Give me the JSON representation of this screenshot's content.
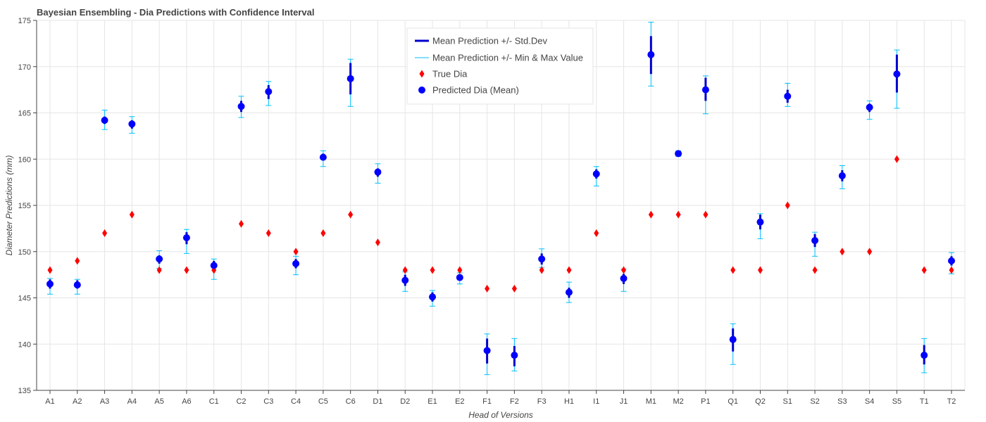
{
  "chart_data": {
    "type": "scatter",
    "title": "Bayesian Ensembling - Dia Predictions with Confidence Interval",
    "xlabel": "Head of Versions",
    "ylabel": "Diameter Predictions (mm)",
    "ylim": [
      135,
      175
    ],
    "yticks": [
      135,
      140,
      145,
      150,
      155,
      160,
      165,
      170,
      175
    ],
    "grid": true,
    "legend_position": "top-center",
    "categories": [
      "A1",
      "A2",
      "A3",
      "A4",
      "A5",
      "A6",
      "C1",
      "C2",
      "C3",
      "C4",
      "C5",
      "C6",
      "D1",
      "D2",
      "E1",
      "E2",
      "F1",
      "F2",
      "F3",
      "H1",
      "I1",
      "J1",
      "M1",
      "M2",
      "P1",
      "Q1",
      "Q2",
      "S1",
      "S2",
      "S3",
      "S4",
      "S5",
      "T1",
      "T2"
    ],
    "series": [
      {
        "name": "Mean Prediction +/- Std.Dev",
        "color": "#0000cd",
        "lower": [
          146.0,
          146.0,
          163.8,
          163.3,
          148.7,
          150.8,
          148.1,
          165.1,
          166.5,
          148.2,
          159.9,
          167.0,
          158.1,
          146.3,
          144.6,
          147.0,
          137.9,
          137.6,
          148.6,
          145.0,
          157.9,
          146.5,
          169.2,
          160.4,
          166.3,
          139.2,
          152.4,
          166.1,
          150.5,
          157.6,
          165.1,
          167.2,
          137.8,
          148.5
        ],
        "upper": [
          147.0,
          146.9,
          164.6,
          164.2,
          149.6,
          152.1,
          149.0,
          166.3,
          168.0,
          149.2,
          160.6,
          170.4,
          159.0,
          147.5,
          145.6,
          147.4,
          140.6,
          139.8,
          149.8,
          146.1,
          158.9,
          147.6,
          173.3,
          160.8,
          168.8,
          141.7,
          154.0,
          167.5,
          151.9,
          158.8,
          166.0,
          171.3,
          139.9,
          149.5
        ]
      },
      {
        "name": "Mean Prediction +/- Min & Max Value",
        "color": "#00bfff",
        "lower": [
          145.4,
          145.4,
          163.2,
          162.8,
          148.2,
          149.8,
          147.0,
          164.5,
          165.8,
          147.5,
          159.2,
          165.7,
          157.4,
          145.7,
          144.1,
          146.5,
          136.7,
          137.1,
          148.3,
          144.5,
          157.1,
          145.7,
          167.9,
          160.3,
          164.9,
          137.8,
          151.4,
          165.7,
          149.5,
          156.8,
          164.3,
          165.5,
          136.9,
          147.6
        ],
        "upper": [
          147.1,
          147.0,
          165.3,
          164.6,
          150.1,
          152.4,
          149.2,
          166.8,
          168.4,
          149.5,
          160.9,
          170.8,
          159.5,
          147.8,
          145.8,
          147.7,
          141.1,
          140.6,
          150.3,
          146.7,
          159.2,
          148.1,
          174.8,
          160.9,
          169.0,
          142.2,
          154.1,
          168.2,
          152.1,
          159.3,
          166.3,
          171.8,
          140.6,
          149.9
        ]
      },
      {
        "name": "True Dia",
        "color": "#ff0000",
        "marker": "diamond",
        "values": [
          148,
          149,
          152,
          154,
          148,
          148,
          148,
          153,
          152,
          150,
          152,
          154,
          151,
          148,
          148,
          148,
          146,
          146,
          148,
          148,
          152,
          148,
          154,
          154,
          154,
          148,
          148,
          155,
          148,
          150,
          150,
          160,
          148,
          148
        ]
      },
      {
        "name": "Predicted Dia (Mean)",
        "color": "#0000ff",
        "marker": "circle",
        "values": [
          146.5,
          146.4,
          164.2,
          163.8,
          149.2,
          151.5,
          148.5,
          165.7,
          167.3,
          148.7,
          160.2,
          168.7,
          158.6,
          146.9,
          145.1,
          147.2,
          139.3,
          138.8,
          149.2,
          145.6,
          158.4,
          147.1,
          171.3,
          160.6,
          167.5,
          140.5,
          153.2,
          166.8,
          151.2,
          158.2,
          165.6,
          169.2,
          138.8,
          149.0
        ]
      }
    ]
  }
}
